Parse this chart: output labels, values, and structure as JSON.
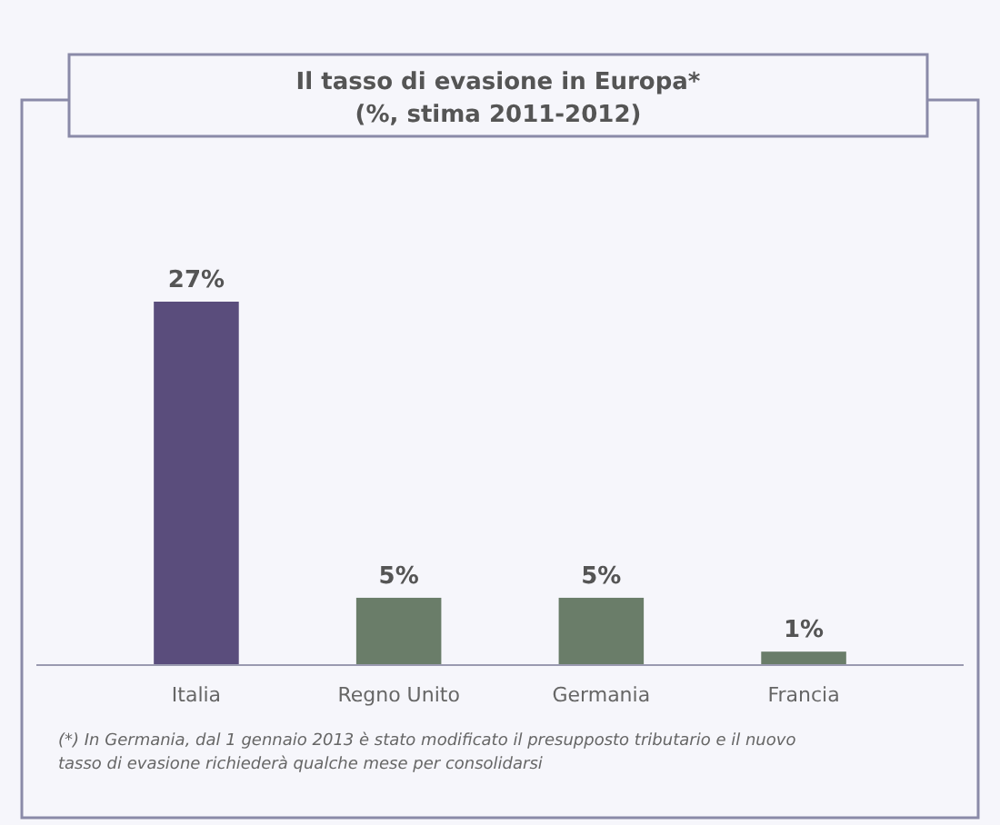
{
  "chart_data": {
    "type": "bar",
    "title": "Il tasso di evasione in Europa*",
    "subtitle": "(%, stima 2011-2012)",
    "categories": [
      "Italia",
      "Regno Unito",
      "Germania",
      "Francia"
    ],
    "values": [
      27,
      5,
      5,
      1
    ],
    "colors": [
      "#5a4d7c",
      "#6a7d69",
      "#6a7d69",
      "#6a7d69"
    ],
    "value_labels": [
      "27%",
      "5%",
      "5%",
      "1%"
    ],
    "annotations": [
      "(*) In Germania, dal 1 gennaio 2013 è stato modificato il presupposto tributario e il nuovo tasso di evasione richiederà qualche mese per consolidarsi"
    ]
  }
}
